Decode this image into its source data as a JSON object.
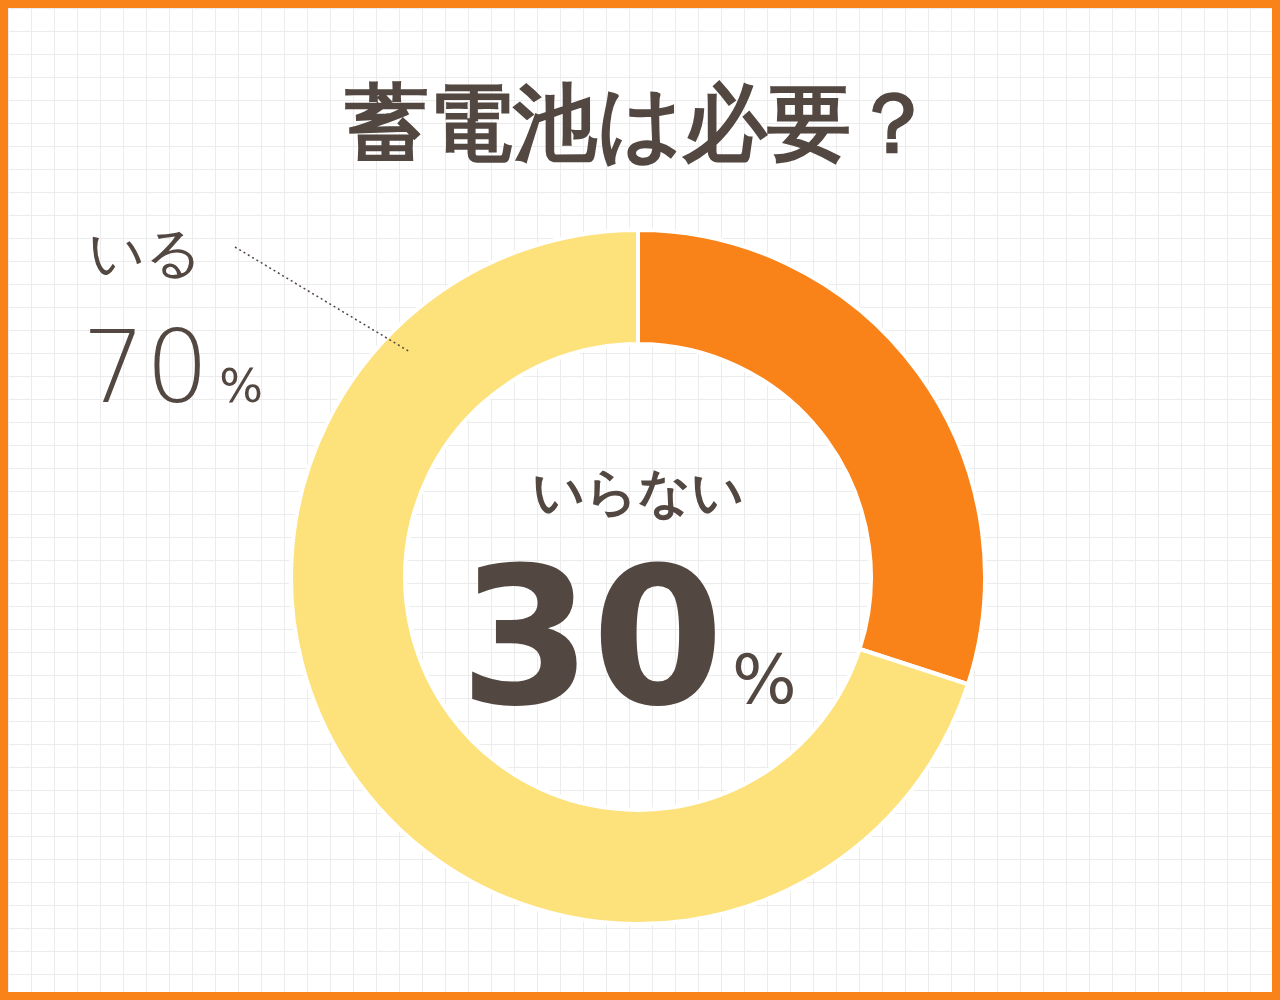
{
  "chart_data": {
    "type": "donut",
    "title": "蓄電池は必要？",
    "categories": [
      "いらない",
      "いる"
    ],
    "values": [
      30,
      70
    ],
    "colors": [
      "#f98319",
      "#fde17a"
    ],
    "value_labels": [
      "30%",
      "70%"
    ]
  }
}
